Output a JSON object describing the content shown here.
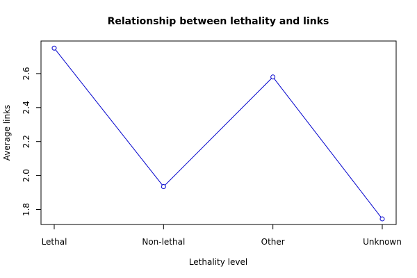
{
  "chart_data": {
    "type": "line",
    "title": "Relationship between lethality and links",
    "xlabel": "Lethality level",
    "ylabel": "Average links",
    "categories": [
      "Lethal",
      "Non-lethal",
      "Other",
      "Unknown"
    ],
    "series": [
      {
        "values": [
          2.75,
          1.935,
          2.58,
          1.745
        ],
        "color": "#0000cd"
      }
    ],
    "yticks": [
      "1.8",
      "2.0",
      "2.2",
      "2.4",
      "2.6"
    ],
    "ylim": [
      1.7,
      2.8
    ],
    "grid": false,
    "legend": "none"
  }
}
